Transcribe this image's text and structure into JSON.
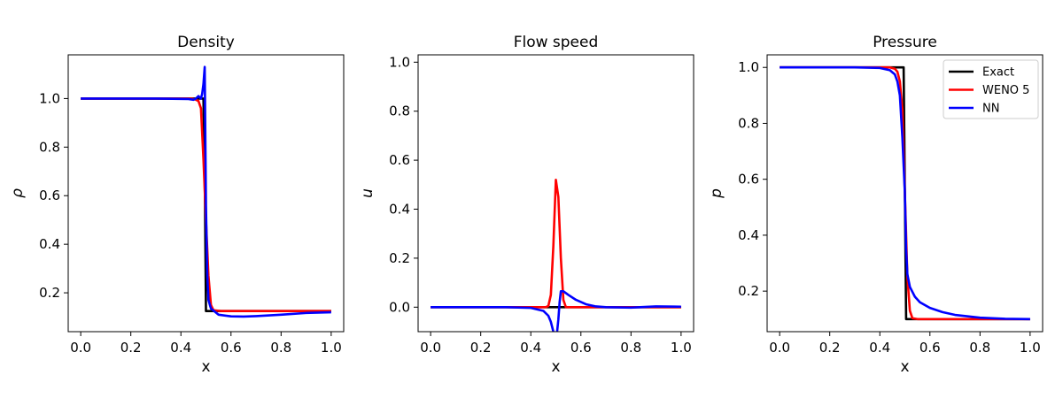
{
  "chart_data": [
    {
      "type": "line",
      "title": "Density",
      "xlabel": "x",
      "ylabel": "ρ",
      "xlim": [
        -0.05,
        1.05
      ],
      "ylim": [
        0.04,
        1.18
      ],
      "xticks": [
        0.0,
        0.2,
        0.4,
        0.6,
        0.8,
        1.0
      ],
      "xtick_labels": [
        "0.0",
        "0.2",
        "0.4",
        "0.6",
        "0.8",
        "1.0"
      ],
      "yticks": [
        0.2,
        0.4,
        0.6,
        0.8,
        1.0
      ],
      "ytick_labels": [
        "0.2",
        "0.4",
        "0.6",
        "0.8",
        "1.0"
      ],
      "grid": false,
      "series": [
        {
          "name": "Exact",
          "color": "#000000",
          "points": [
            [
              0.0,
              1.0
            ],
            [
              0.49,
              1.0
            ],
            [
              0.496,
              0.6
            ],
            [
              0.5,
              0.125
            ],
            [
              1.0,
              0.125
            ]
          ]
        },
        {
          "name": "WENO 5",
          "color": "#ff0000",
          "points": [
            [
              0.0,
              1.0
            ],
            [
              0.44,
              1.0
            ],
            [
              0.46,
              0.995
            ],
            [
              0.47,
              0.99
            ],
            [
              0.48,
              0.96
            ],
            [
              0.49,
              0.75
            ],
            [
              0.5,
              0.5
            ],
            [
              0.51,
              0.27
            ],
            [
              0.52,
              0.15
            ],
            [
              0.53,
              0.128
            ],
            [
              0.56,
              0.125
            ],
            [
              1.0,
              0.125
            ]
          ]
        },
        {
          "name": "NN",
          "color": "#0000ff",
          "points": [
            [
              0.0,
              1.0
            ],
            [
              0.3,
              1.0
            ],
            [
              0.43,
              0.998
            ],
            [
              0.45,
              0.995
            ],
            [
              0.46,
              1.0
            ],
            [
              0.47,
              1.01
            ],
            [
              0.48,
              1.0
            ],
            [
              0.485,
              1.02
            ],
            [
              0.49,
              1.06
            ],
            [
              0.495,
              1.13
            ],
            [
              0.5,
              0.56
            ],
            [
              0.505,
              0.28
            ],
            [
              0.51,
              0.17
            ],
            [
              0.52,
              0.135
            ],
            [
              0.55,
              0.11
            ],
            [
              0.6,
              0.103
            ],
            [
              0.65,
              0.102
            ],
            [
              0.7,
              0.104
            ],
            [
              0.8,
              0.11
            ],
            [
              0.9,
              0.117
            ],
            [
              1.0,
              0.12
            ]
          ]
        }
      ]
    },
    {
      "type": "line",
      "title": "Flow speed",
      "xlabel": "x",
      "ylabel": "u",
      "xlim": [
        -0.05,
        1.05
      ],
      "ylim": [
        -0.1,
        1.03
      ],
      "xticks": [
        0.0,
        0.2,
        0.4,
        0.6,
        0.8,
        1.0
      ],
      "xtick_labels": [
        "0.0",
        "0.2",
        "0.4",
        "0.6",
        "0.8",
        "1.0"
      ],
      "yticks": [
        0.0,
        0.2,
        0.4,
        0.6,
        0.8,
        1.0
      ],
      "ytick_labels": [
        "0.0",
        "0.2",
        "0.4",
        "0.6",
        "0.8",
        "1.0"
      ],
      "grid": false,
      "series": [
        {
          "name": "Exact",
          "color": "#000000",
          "points": [
            [
              0.0,
              0.0
            ],
            [
              1.0,
              0.0
            ]
          ]
        },
        {
          "name": "WENO 5",
          "color": "#ff0000",
          "points": [
            [
              0.0,
              0.0
            ],
            [
              0.46,
              0.0
            ],
            [
              0.47,
              0.005
            ],
            [
              0.48,
              0.05
            ],
            [
              0.49,
              0.25
            ],
            [
              0.5,
              0.52
            ],
            [
              0.51,
              0.45
            ],
            [
              0.52,
              0.2
            ],
            [
              0.53,
              0.03
            ],
            [
              0.54,
              0.0
            ],
            [
              1.0,
              0.0
            ]
          ]
        },
        {
          "name": "NN",
          "color": "#0000ff",
          "points": [
            [
              0.0,
              0.0
            ],
            [
              0.3,
              0.0
            ],
            [
              0.4,
              -0.003
            ],
            [
              0.45,
              -0.015
            ],
            [
              0.47,
              -0.035
            ],
            [
              0.48,
              -0.06
            ],
            [
              0.49,
              -0.1
            ],
            [
              0.5,
              -0.15
            ],
            [
              0.51,
              -0.05
            ],
            [
              0.515,
              0.02
            ],
            [
              0.52,
              0.065
            ],
            [
              0.53,
              0.065
            ],
            [
              0.55,
              0.05
            ],
            [
              0.58,
              0.03
            ],
            [
              0.62,
              0.012
            ],
            [
              0.66,
              0.003
            ],
            [
              0.7,
              0.0
            ],
            [
              0.8,
              -0.002
            ],
            [
              0.9,
              0.003
            ],
            [
              1.0,
              0.002
            ]
          ]
        }
      ]
    },
    {
      "type": "line",
      "title": "Pressure",
      "xlabel": "x",
      "ylabel": "p",
      "xlim": [
        -0.05,
        1.05
      ],
      "ylim": [
        0.055,
        1.045
      ],
      "xticks": [
        0.0,
        0.2,
        0.4,
        0.6,
        0.8,
        1.0
      ],
      "xtick_labels": [
        "0.0",
        "0.2",
        "0.4",
        "0.6",
        "0.8",
        "1.0"
      ],
      "yticks": [
        0.2,
        0.4,
        0.6,
        0.8,
        1.0
      ],
      "ytick_labels": [
        "0.2",
        "0.4",
        "0.6",
        "0.8",
        "1.0"
      ],
      "grid": false,
      "legend": {
        "position": "top-right",
        "entries": [
          "Exact",
          "WENO 5",
          "NN"
        ]
      },
      "series": [
        {
          "name": "Exact",
          "color": "#000000",
          "points": [
            [
              0.0,
              1.0
            ],
            [
              0.495,
              1.0
            ],
            [
              0.5,
              0.55
            ],
            [
              0.505,
              0.1
            ],
            [
              1.0,
              0.1
            ]
          ]
        },
        {
          "name": "WENO 5",
          "color": "#ff0000",
          "points": [
            [
              0.0,
              1.0
            ],
            [
              0.44,
              1.0
            ],
            [
              0.46,
              0.995
            ],
            [
              0.47,
              0.985
            ],
            [
              0.48,
              0.95
            ],
            [
              0.49,
              0.85
            ],
            [
              0.5,
              0.55
            ],
            [
              0.51,
              0.25
            ],
            [
              0.52,
              0.13
            ],
            [
              0.53,
              0.103
            ],
            [
              0.55,
              0.1
            ],
            [
              1.0,
              0.1
            ]
          ]
        },
        {
          "name": "NN",
          "color": "#0000ff",
          "points": [
            [
              0.0,
              1.0
            ],
            [
              0.3,
              1.0
            ],
            [
              0.4,
              0.998
            ],
            [
              0.44,
              0.99
            ],
            [
              0.46,
              0.975
            ],
            [
              0.47,
              0.95
            ],
            [
              0.48,
              0.9
            ],
            [
              0.49,
              0.75
            ],
            [
              0.5,
              0.55
            ],
            [
              0.505,
              0.35
            ],
            [
              0.51,
              0.26
            ],
            [
              0.52,
              0.215
            ],
            [
              0.54,
              0.18
            ],
            [
              0.56,
              0.16
            ],
            [
              0.6,
              0.14
            ],
            [
              0.65,
              0.125
            ],
            [
              0.7,
              0.115
            ],
            [
              0.8,
              0.105
            ],
            [
              0.9,
              0.101
            ],
            [
              1.0,
              0.1
            ]
          ]
        }
      ]
    }
  ]
}
